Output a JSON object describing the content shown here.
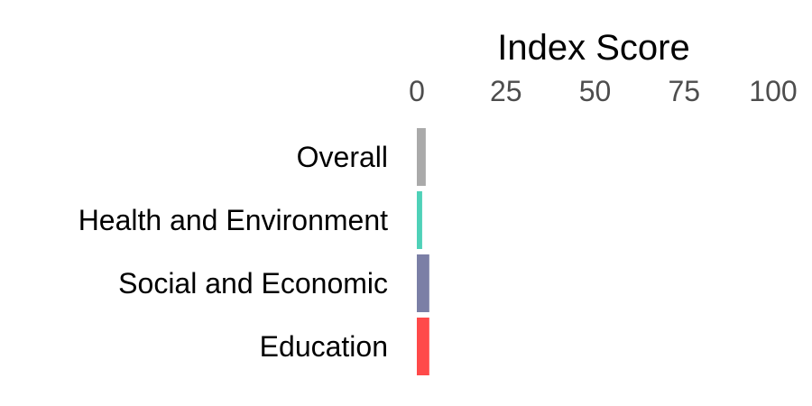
{
  "chart_data": {
    "type": "bar",
    "orientation": "horizontal",
    "title": "",
    "xlabel": "Index Score",
    "ylabel": "",
    "x_axis_position": "top",
    "xlim": [
      0,
      100
    ],
    "xticks": [
      0,
      25,
      50,
      75,
      100
    ],
    "grid": false,
    "legend": "none",
    "categories": [
      "Overall",
      "Health and Environment",
      "Social and Economic",
      "Education"
    ],
    "values": [
      2.5,
      1.5,
      3.5,
      3.5
    ],
    "colors": [
      "#aaaaaa",
      "#4fd1b8",
      "#7b7fa6",
      "#ff4a4a"
    ]
  }
}
